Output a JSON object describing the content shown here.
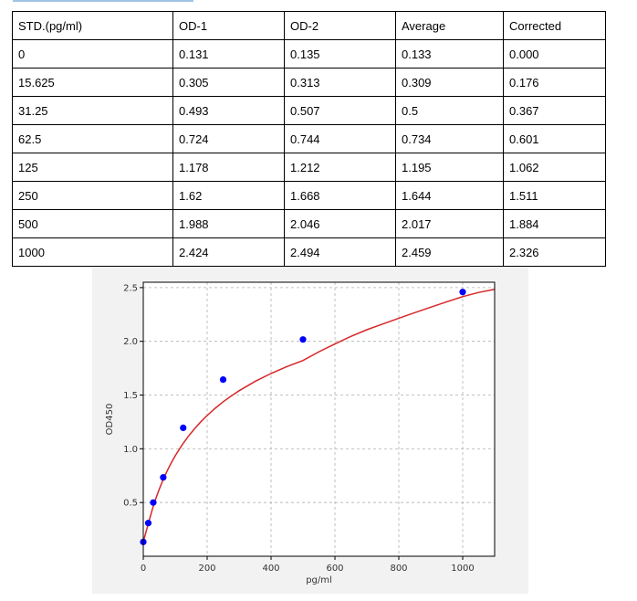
{
  "table": {
    "headers": [
      "STD.(pg/ml)",
      "OD-1",
      "OD-2",
      "Average",
      "Corrected"
    ],
    "rows": [
      [
        "0",
        "0.131",
        "0.135",
        "0.133",
        "0.000"
      ],
      [
        "15.625",
        "0.305",
        "0.313",
        "0.309",
        "0.176"
      ],
      [
        "31.25",
        "0.493",
        "0.507",
        "0.5",
        "0.367"
      ],
      [
        "62.5",
        "0.724",
        "0.744",
        "0.734",
        "0.601"
      ],
      [
        "125",
        "1.178",
        "1.212",
        "1.195",
        "1.062"
      ],
      [
        "250",
        "1.62",
        "1.668",
        "1.644",
        "1.511"
      ],
      [
        "500",
        "1.988",
        "2.046",
        "2.017",
        "1.884"
      ],
      [
        "1000",
        "2.424",
        "2.494",
        "2.459",
        "2.326"
      ]
    ]
  },
  "chart_data": {
    "type": "scatter",
    "title": "",
    "xlabel": "pg/ml",
    "ylabel": "OD450",
    "xlim": [
      0,
      1100
    ],
    "ylim": [
      0,
      2.55
    ],
    "xticks": [
      0,
      200,
      400,
      600,
      800,
      1000
    ],
    "yticks": [
      0.5,
      1.0,
      1.5,
      2.0,
      2.5
    ],
    "xtick_labels": [
      "0",
      "200",
      "400",
      "600",
      "800",
      "1000"
    ],
    "ytick_labels": [
      "0.5",
      "1.0",
      "1.5",
      "2.0",
      "2.5"
    ],
    "grid": true,
    "series": [
      {
        "kind": "points",
        "color": "#0000ff",
        "x": [
          0,
          15.625,
          31.25,
          62.5,
          125,
          250,
          500,
          1000
        ],
        "y": [
          0.133,
          0.309,
          0.5,
          0.734,
          1.195,
          1.644,
          2.017,
          2.459
        ]
      },
      {
        "kind": "fit-curve",
        "color": "#d62728",
        "x": [
          0,
          10,
          20,
          30,
          40,
          50,
          60,
          70,
          80,
          90,
          100,
          120,
          140,
          160,
          180,
          200,
          225,
          250,
          275,
          300,
          350,
          400,
          450,
          500,
          550,
          600,
          650,
          700,
          750,
          800,
          850,
          900,
          950,
          1000,
          1050,
          1100
        ],
        "y": [
          0.133,
          0.242,
          0.349,
          0.453,
          0.543,
          0.624,
          0.697,
          0.764,
          0.826,
          0.882,
          0.935,
          1.029,
          1.112,
          1.185,
          1.251,
          1.31,
          1.377,
          1.437,
          1.491,
          1.54,
          1.627,
          1.701,
          1.765,
          1.822,
          1.903,
          1.976,
          2.046,
          2.108,
          2.162,
          2.215,
          2.267,
          2.318,
          2.368,
          2.416,
          2.455,
          2.484
        ]
      }
    ]
  }
}
